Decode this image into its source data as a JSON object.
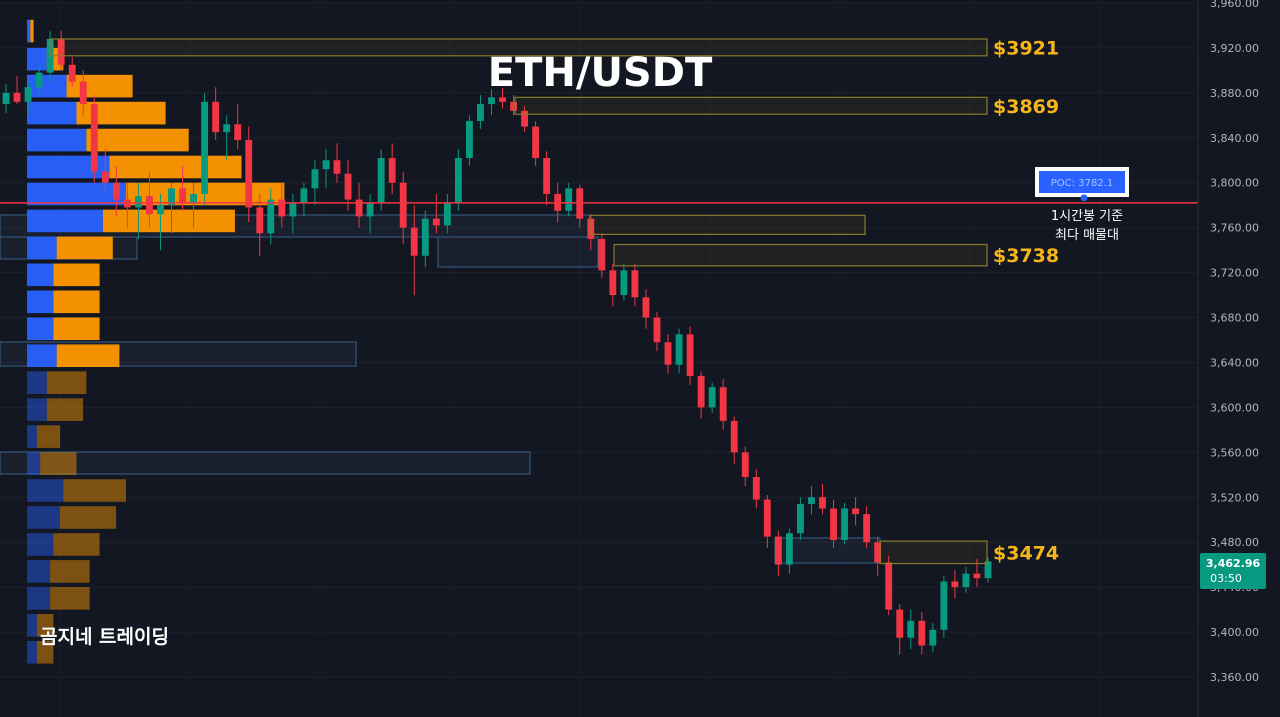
{
  "chart_data": {
    "type": "candlestick",
    "title": "ETH/USDT",
    "watermark": "곰지네 트레이딩",
    "y_axis": {
      "ticks": [
        "3,960.00",
        "3,920.00",
        "3,880.00",
        "3,840.00",
        "3,800.00",
        "3,760.00",
        "3,720.00",
        "3,680.00",
        "3,640.00",
        "3,600.00",
        "3,560.00",
        "3,520.00",
        "3,480.00",
        "3,440.00",
        "3,400.00",
        "3,360.00"
      ],
      "ylim": [
        3340,
        3965
      ]
    },
    "last_price": {
      "value": "3,462.96",
      "countdown": "03:50",
      "color": "#089981"
    },
    "poc": {
      "label": "POC: 3782.1",
      "value": 3782.1,
      "note_line1": "1시간봉 기준",
      "note_line2": "최다 매물대",
      "line_color": "#f23645"
    },
    "zones": [
      {
        "label": "$3921",
        "high": 3928,
        "low": 3913,
        "color": "#f5b51b"
      },
      {
        "label": "$3869",
        "high": 3876,
        "low": 3861,
        "color": "#f5b51b"
      },
      {
        "label": "$3738",
        "high": 3745,
        "low": 3726,
        "color": "#f5b51b"
      },
      {
        "label": "$3474",
        "high": 3481,
        "low": 3461,
        "color": "#f5b51b"
      },
      {
        "label": "",
        "high": 3771,
        "low": 3754,
        "color": "#f5b51b"
      }
    ],
    "volume_profile": {
      "up_color": "#2962ff",
      "down_color": "#ff9800",
      "rows": [
        {
          "price": 3935,
          "up": 1,
          "down": 1
        },
        {
          "price": 3910,
          "up": 6,
          "down": 5
        },
        {
          "price": 3886,
          "up": 12,
          "down": 20
        },
        {
          "price": 3862,
          "up": 15,
          "down": 27
        },
        {
          "price": 3838,
          "up": 18,
          "down": 31
        },
        {
          "price": 3814,
          "up": 25,
          "down": 40
        },
        {
          "price": 3790,
          "up": 30,
          "down": 48
        },
        {
          "price": 3766,
          "up": 23,
          "down": 40
        },
        {
          "price": 3742,
          "up": 9,
          "down": 17
        },
        {
          "price": 3718,
          "up": 8,
          "down": 14
        },
        {
          "price": 3694,
          "up": 8,
          "down": 14
        },
        {
          "price": 3670,
          "up": 8,
          "down": 14
        },
        {
          "price": 3646,
          "up": 9,
          "down": 19
        },
        {
          "price": 3622,
          "up": 6,
          "down": 12
        },
        {
          "price": 3598,
          "up": 6,
          "down": 11
        },
        {
          "price": 3574,
          "up": 3,
          "down": 7
        },
        {
          "price": 3550,
          "up": 4,
          "down": 11
        },
        {
          "price": 3526,
          "up": 11,
          "down": 19
        },
        {
          "price": 3502,
          "up": 10,
          "down": 17
        },
        {
          "price": 3478,
          "up": 8,
          "down": 14
        },
        {
          "price": 3454,
          "up": 7,
          "down": 12
        },
        {
          "price": 3430,
          "up": 7,
          "down": 12
        },
        {
          "price": 3406,
          "up": 3,
          "down": 5
        },
        {
          "price": 3382,
          "up": 3,
          "down": 5
        }
      ]
    },
    "up_color": "#089981",
    "down_color": "#f23645",
    "candles": [
      [
        3870,
        3888,
        3862,
        3880
      ],
      [
        3880,
        3895,
        3870,
        3872
      ],
      [
        3872,
        3890,
        3860,
        3885
      ],
      [
        3885,
        3905,
        3878,
        3898
      ],
      [
        3898,
        3935,
        3890,
        3928
      ],
      [
        3928,
        3935,
        3900,
        3905
      ],
      [
        3905,
        3912,
        3885,
        3890
      ],
      [
        3890,
        3900,
        3860,
        3870
      ],
      [
        3870,
        3878,
        3800,
        3810
      ],
      [
        3810,
        3830,
        3790,
        3800
      ],
      [
        3800,
        3815,
        3770,
        3785
      ],
      [
        3785,
        3800,
        3760,
        3778
      ],
      [
        3778,
        3800,
        3750,
        3788
      ],
      [
        3788,
        3810,
        3760,
        3772
      ],
      [
        3772,
        3790,
        3740,
        3780
      ],
      [
        3780,
        3800,
        3755,
        3795
      ],
      [
        3795,
        3815,
        3775,
        3782
      ],
      [
        3782,
        3800,
        3760,
        3790
      ],
      [
        3790,
        3880,
        3780,
        3872
      ],
      [
        3872,
        3885,
        3838,
        3845
      ],
      [
        3845,
        3860,
        3820,
        3852
      ],
      [
        3852,
        3870,
        3830,
        3838
      ],
      [
        3838,
        3850,
        3765,
        3778
      ],
      [
        3778,
        3790,
        3735,
        3755
      ],
      [
        3755,
        3795,
        3745,
        3785
      ],
      [
        3785,
        3800,
        3760,
        3770
      ],
      [
        3770,
        3790,
        3755,
        3782
      ],
      [
        3782,
        3800,
        3770,
        3795
      ],
      [
        3795,
        3820,
        3780,
        3812
      ],
      [
        3812,
        3830,
        3795,
        3820
      ],
      [
        3820,
        3835,
        3800,
        3808
      ],
      [
        3808,
        3820,
        3775,
        3785
      ],
      [
        3785,
        3800,
        3760,
        3770
      ],
      [
        3770,
        3790,
        3755,
        3782
      ],
      [
        3782,
        3830,
        3775,
        3822
      ],
      [
        3822,
        3835,
        3790,
        3800
      ],
      [
        3800,
        3810,
        3745,
        3760
      ],
      [
        3760,
        3780,
        3700,
        3735
      ],
      [
        3735,
        3775,
        3725,
        3768
      ],
      [
        3768,
        3790,
        3755,
        3762
      ],
      [
        3762,
        3790,
        3755,
        3782
      ],
      [
        3782,
        3830,
        3775,
        3822
      ],
      [
        3822,
        3860,
        3815,
        3855
      ],
      [
        3855,
        3878,
        3848,
        3870
      ],
      [
        3870,
        3883,
        3860,
        3876
      ],
      [
        3876,
        3884,
        3866,
        3872
      ],
      [
        3872,
        3878,
        3860,
        3864
      ],
      [
        3864,
        3868,
        3845,
        3850
      ],
      [
        3850,
        3855,
        3815,
        3822
      ],
      [
        3822,
        3828,
        3780,
        3790
      ],
      [
        3790,
        3800,
        3765,
        3775
      ],
      [
        3775,
        3800,
        3770,
        3795
      ],
      [
        3795,
        3798,
        3760,
        3768
      ],
      [
        3768,
        3772,
        3740,
        3750
      ],
      [
        3750,
        3755,
        3715,
        3722
      ],
      [
        3722,
        3728,
        3690,
        3700
      ],
      [
        3700,
        3728,
        3695,
        3722
      ],
      [
        3722,
        3728,
        3690,
        3698
      ],
      [
        3698,
        3705,
        3670,
        3680
      ],
      [
        3680,
        3685,
        3650,
        3658
      ],
      [
        3658,
        3665,
        3630,
        3638
      ],
      [
        3638,
        3670,
        3630,
        3665
      ],
      [
        3665,
        3672,
        3620,
        3628
      ],
      [
        3628,
        3632,
        3590,
        3600
      ],
      [
        3600,
        3622,
        3595,
        3618
      ],
      [
        3618,
        3625,
        3580,
        3588
      ],
      [
        3588,
        3592,
        3550,
        3560
      ],
      [
        3560,
        3565,
        3530,
        3538
      ],
      [
        3538,
        3545,
        3510,
        3518
      ],
      [
        3518,
        3522,
        3475,
        3485
      ],
      [
        3485,
        3490,
        3450,
        3460
      ],
      [
        3460,
        3492,
        3452,
        3488
      ],
      [
        3488,
        3520,
        3482,
        3514
      ],
      [
        3514,
        3530,
        3505,
        3520
      ],
      [
        3520,
        3532,
        3505,
        3510
      ],
      [
        3510,
        3518,
        3475,
        3482
      ],
      [
        3482,
        3515,
        3478,
        3510
      ],
      [
        3510,
        3520,
        3495,
        3505
      ],
      [
        3505,
        3512,
        3475,
        3480
      ],
      [
        3480,
        3485,
        3450,
        3462
      ],
      [
        3462,
        3468,
        3415,
        3420
      ],
      [
        3420,
        3425,
        3380,
        3395
      ],
      [
        3395,
        3420,
        3385,
        3410
      ],
      [
        3410,
        3418,
        3380,
        3388
      ],
      [
        3388,
        3408,
        3382,
        3402
      ],
      [
        3402,
        3450,
        3395,
        3445
      ],
      [
        3445,
        3455,
        3430,
        3440
      ],
      [
        3440,
        3458,
        3435,
        3452
      ],
      [
        3452,
        3465,
        3440,
        3448
      ],
      [
        3448,
        3466,
        3444,
        3463
      ]
    ]
  }
}
